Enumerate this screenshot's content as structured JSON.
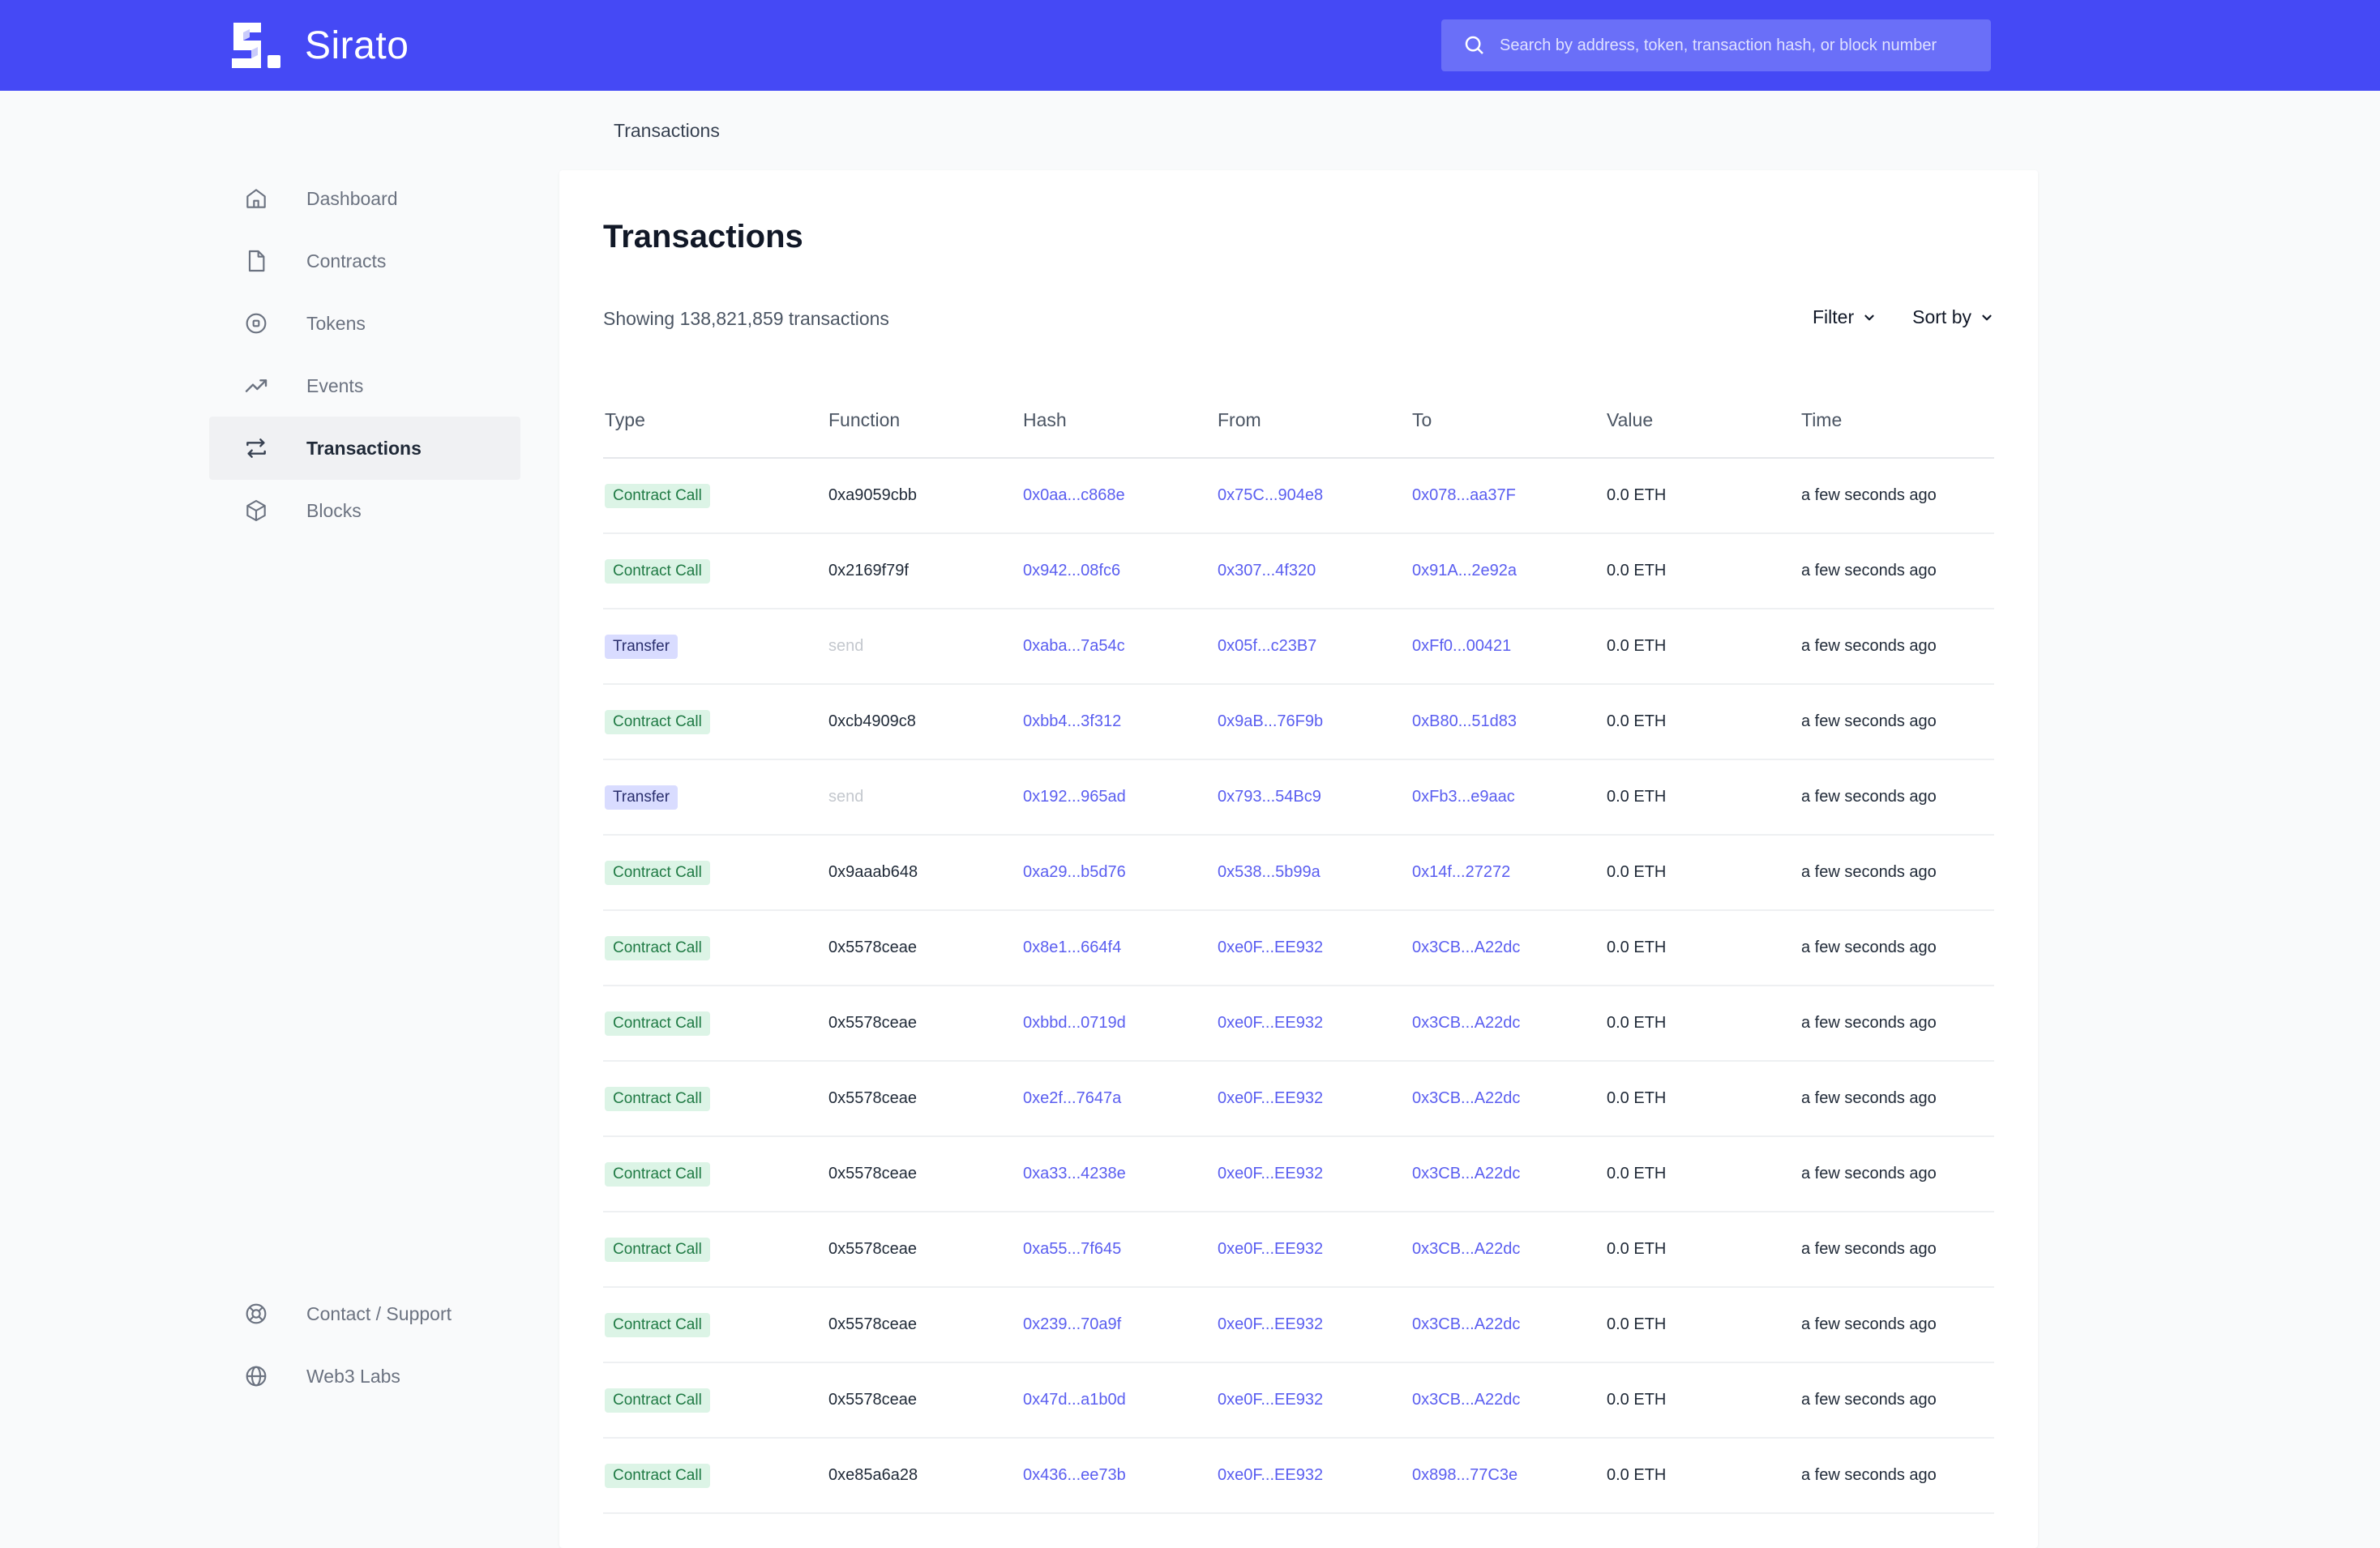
{
  "app": {
    "name": "Sirato"
  },
  "search": {
    "placeholder": "Search by address, token, transaction hash, or block number"
  },
  "breadcrumb": "Transactions",
  "sidebar": {
    "items": [
      {
        "label": "Dashboard",
        "icon": "home-icon",
        "active": false
      },
      {
        "label": "Contracts",
        "icon": "document-icon",
        "active": false
      },
      {
        "label": "Tokens",
        "icon": "coin-icon",
        "active": false
      },
      {
        "label": "Events",
        "icon": "trend-icon",
        "active": false
      },
      {
        "label": "Transactions",
        "icon": "swap-arrows-icon",
        "active": true
      },
      {
        "label": "Blocks",
        "icon": "cube-icon",
        "active": false
      }
    ],
    "bottom_items": [
      {
        "label": "Contact / Support",
        "icon": "lifebuoy-icon"
      },
      {
        "label": "Web3 Labs",
        "icon": "globe-icon"
      }
    ]
  },
  "main": {
    "title": "Transactions",
    "count_text": "Showing 138,821,859 transactions",
    "filter_label": "Filter",
    "sort_label": "Sort by",
    "columns": [
      "Type",
      "Function",
      "Hash",
      "From",
      "To",
      "Value",
      "Time"
    ],
    "rows": [
      {
        "type": "Contract Call",
        "function": "0xa9059cbb",
        "hash": "0x0aa...c868e",
        "from": "0x75C...904e8",
        "to": "0x078...aa37F",
        "value": "0.0 ETH",
        "time": "a few seconds ago"
      },
      {
        "type": "Contract Call",
        "function": "0x2169f79f",
        "hash": "0x942...08fc6",
        "from": "0x307...4f320",
        "to": "0x91A...2e92a",
        "value": "0.0 ETH",
        "time": "a few seconds ago"
      },
      {
        "type": "Transfer",
        "function": "send",
        "hash": "0xaba...7a54c",
        "from": "0x05f...c23B7",
        "to": "0xFf0...00421",
        "value": "0.0 ETH",
        "time": "a few seconds ago"
      },
      {
        "type": "Contract Call",
        "function": "0xcb4909c8",
        "hash": "0xbb4...3f312",
        "from": "0x9aB...76F9b",
        "to": "0xB80...51d83",
        "value": "0.0 ETH",
        "time": "a few seconds ago"
      },
      {
        "type": "Transfer",
        "function": "send",
        "hash": "0x192...965ad",
        "from": "0x793...54Bc9",
        "to": "0xFb3...e9aac",
        "value": "0.0 ETH",
        "time": "a few seconds ago"
      },
      {
        "type": "Contract Call",
        "function": "0x9aaab648",
        "hash": "0xa29...b5d76",
        "from": "0x538...5b99a",
        "to": "0x14f...27272",
        "value": "0.0 ETH",
        "time": "a few seconds ago"
      },
      {
        "type": "Contract Call",
        "function": "0x5578ceae",
        "hash": "0x8e1...664f4",
        "from": "0xe0F...EE932",
        "to": "0x3CB...A22dc",
        "value": "0.0 ETH",
        "time": "a few seconds ago"
      },
      {
        "type": "Contract Call",
        "function": "0x5578ceae",
        "hash": "0xbbd...0719d",
        "from": "0xe0F...EE932",
        "to": "0x3CB...A22dc",
        "value": "0.0 ETH",
        "time": "a few seconds ago"
      },
      {
        "type": "Contract Call",
        "function": "0x5578ceae",
        "hash": "0xe2f...7647a",
        "from": "0xe0F...EE932",
        "to": "0x3CB...A22dc",
        "value": "0.0 ETH",
        "time": "a few seconds ago"
      },
      {
        "type": "Contract Call",
        "function": "0x5578ceae",
        "hash": "0xa33...4238e",
        "from": "0xe0F...EE932",
        "to": "0x3CB...A22dc",
        "value": "0.0 ETH",
        "time": "a few seconds ago"
      },
      {
        "type": "Contract Call",
        "function": "0x5578ceae",
        "hash": "0xa55...7f645",
        "from": "0xe0F...EE932",
        "to": "0x3CB...A22dc",
        "value": "0.0 ETH",
        "time": "a few seconds ago"
      },
      {
        "type": "Contract Call",
        "function": "0x5578ceae",
        "hash": "0x239...70a9f",
        "from": "0xe0F...EE932",
        "to": "0x3CB...A22dc",
        "value": "0.0 ETH",
        "time": "a few seconds ago"
      },
      {
        "type": "Contract Call",
        "function": "0x5578ceae",
        "hash": "0x47d...a1b0d",
        "from": "0xe0F...EE932",
        "to": "0x3CB...A22dc",
        "value": "0.0 ETH",
        "time": "a few seconds ago"
      },
      {
        "type": "Contract Call",
        "function": "0xe85a6a28",
        "hash": "0x436...ee73b",
        "from": "0xe0F...EE932",
        "to": "0x898...77C3e",
        "value": "0.0 ETH",
        "time": "a few seconds ago"
      }
    ]
  },
  "colors": {
    "brand": "#4549f5",
    "link": "#5a5ef0",
    "call_badge": "#dcf4e6",
    "transfer_badge": "#d9dcff"
  }
}
